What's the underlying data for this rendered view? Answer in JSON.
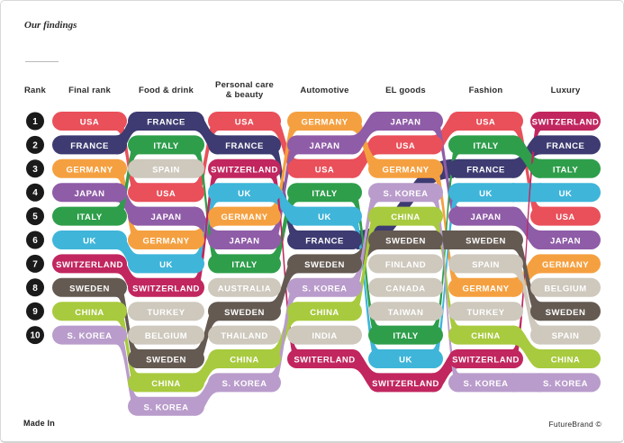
{
  "page": {
    "title": "Our findings",
    "footer_left": "Made In",
    "footer_right": "FutureBrand ©"
  },
  "chart_data": {
    "type": "table",
    "subtype": "bump-ranking",
    "title": "Our findings",
    "rank_header": "Rank",
    "ranks": [
      "1",
      "2",
      "3",
      "4",
      "5",
      "6",
      "7",
      "8",
      "9",
      "10"
    ],
    "columns": [
      {
        "label": "Final rank",
        "entries": [
          "USA",
          "FRANCE",
          "GERMANY",
          "JAPAN",
          "ITALY",
          "UK",
          "SWITZERLAND",
          "SWEDEN",
          "CHINA",
          "S. KOREA"
        ]
      },
      {
        "label": "Food & drink",
        "entries": [
          "FRANCE",
          "ITALY",
          "SPAIN",
          "USA",
          "JAPAN",
          "GERMANY",
          "UK",
          "SWITZERLAND",
          "TURKEY",
          "BELGIUM",
          "SWEDEN",
          "CHINA",
          "S. KOREA"
        ]
      },
      {
        "label": "Personal care\n& beauty",
        "entries": [
          "USA",
          "FRANCE",
          "SWITZERLAND",
          "UK",
          "GERMANY",
          "JAPAN",
          "ITALY",
          "AUSTRALIA",
          "SWEDEN",
          "THAILAND",
          "CHINA",
          "S. KOREA"
        ]
      },
      {
        "label": "Automotive",
        "entries": [
          "GERMANY",
          "JAPAN",
          "USA",
          "ITALY",
          "UK",
          "FRANCE",
          "SWEDEN",
          "S. KOREA",
          "CHINA",
          "INDIA",
          "SWITERLAND"
        ]
      },
      {
        "label": "EL goods",
        "entries": [
          "JAPAN",
          "USA",
          "GERMANY",
          "S. KOREA",
          "CHINA",
          "SWEDEN",
          "FINLAND",
          "CANADA",
          "TAIWAN",
          "ITALY",
          "UK",
          "SWITZERLAND"
        ]
      },
      {
        "label": "Fashion",
        "entries": [
          "USA",
          "ITALY",
          "FRANCE",
          "UK",
          "JAPAN",
          "SWEDEN",
          "SPAIN",
          "GERMANY",
          "TURKEY",
          "CHINA",
          "SWITZERLAND",
          "S. KOREA"
        ]
      },
      {
        "label": "Luxury",
        "entries": [
          "SWITZERLAND",
          "FRANCE",
          "ITALY",
          "UK",
          "USA",
          "JAPAN",
          "GERMANY",
          "BELGIUM",
          "SWEDEN",
          "SPAIN",
          "CHINA",
          "S. KOREA"
        ]
      }
    ],
    "colors": {
      "USA": "#E9505A",
      "FRANCE": "#3D3B71",
      "GERMANY": "#F5A040",
      "JAPAN": "#8F5CA7",
      "ITALY": "#2E9E4B",
      "UK": "#3FB5D9",
      "SWITZERLAND": "#C1265F",
      "SWEDEN": "#645A52",
      "CHINA": "#A8CA3E",
      "S. KOREA": "#B99CCB"
    },
    "inactive_color": "#CEC8BD",
    "rank_badge_color": "#1A1A1A",
    "aliases": {
      "SWITERLAND": "SWITZERLAND"
    }
  }
}
